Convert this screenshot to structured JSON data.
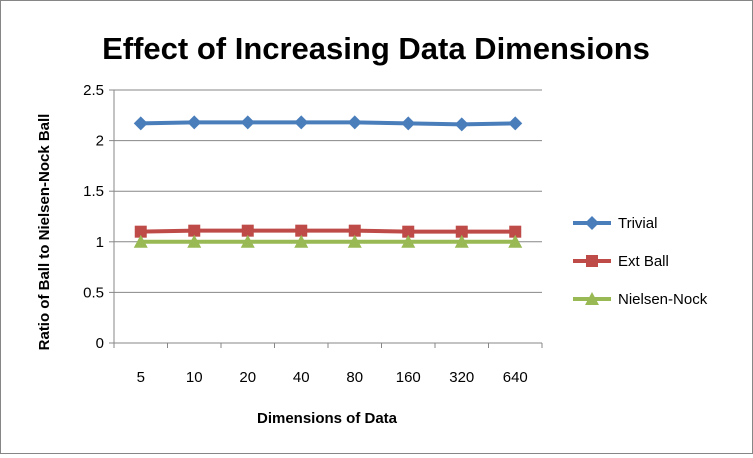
{
  "chart_data": {
    "type": "line",
    "title": "Effect of Increasing Data Dimensions",
    "xlabel": "Dimensions of Data",
    "ylabel": "Ratio of Ball to Nielsen-Nock Ball",
    "categories": [
      "5",
      "10",
      "20",
      "40",
      "80",
      "160",
      "320",
      "640"
    ],
    "ylim": [
      0,
      2.5
    ],
    "yticks": [
      "0",
      "0.5",
      "1",
      "1.5",
      "2",
      "2.5"
    ],
    "grid": "horizontal major gridlines",
    "legend_position": "right",
    "series": [
      {
        "name": "Trivial",
        "color": "#4a7ebb",
        "marker": "diamond",
        "values": [
          2.17,
          2.18,
          2.18,
          2.18,
          2.18,
          2.17,
          2.16,
          2.17
        ]
      },
      {
        "name": "Ext Ball",
        "color": "#be4b48",
        "marker": "square",
        "values": [
          1.1,
          1.11,
          1.11,
          1.11,
          1.11,
          1.1,
          1.1,
          1.1
        ]
      },
      {
        "name": "Nielsen-Nock",
        "color": "#98b954",
        "marker": "triangle",
        "values": [
          1.0,
          1.0,
          1.0,
          1.0,
          1.0,
          1.0,
          1.0,
          1.0
        ]
      }
    ]
  }
}
